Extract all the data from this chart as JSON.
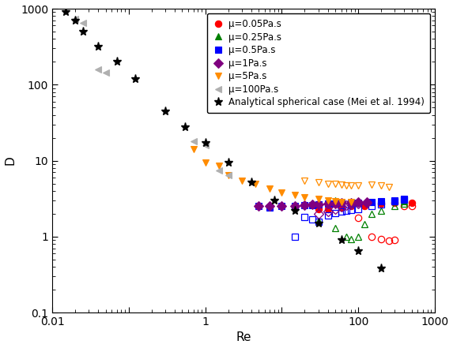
{
  "title": "",
  "xlabel": "Re",
  "ylabel": "D",
  "xlim": [
    0.01,
    1000
  ],
  "ylim": [
    0.1,
    1000
  ],
  "analytical": {
    "Re": [
      0.015,
      0.02,
      0.025,
      0.04,
      0.07,
      0.12,
      0.3,
      0.55,
      1.0,
      2.0,
      4.0,
      8.0,
      15,
      30,
      60,
      100,
      200
    ],
    "D": [
      900,
      700,
      500,
      320,
      200,
      120,
      45,
      28,
      17,
      9.5,
      5.2,
      3.0,
      2.2,
      1.5,
      0.9,
      0.65,
      0.38
    ],
    "color": "#000000",
    "marker": "*",
    "label": "Analytical spherical case (Mei et al. 1994)"
  },
  "series": [
    {
      "label": "μ=0.05Pa.s",
      "color": "#ff0000",
      "marker": "o",
      "filled": [
        {
          "Re": 30,
          "D": 2.3
        },
        {
          "Re": 40,
          "D": 2.3
        },
        {
          "Re": 60,
          "D": 2.4
        },
        {
          "Re": 80,
          "D": 2.5
        },
        {
          "Re": 120,
          "D": 2.5
        },
        {
          "Re": 200,
          "D": 2.7
        },
        {
          "Re": 300,
          "D": 2.8
        },
        {
          "Re": 500,
          "D": 2.8
        }
      ],
      "open": [
        {
          "Re": 100,
          "D": 1.75
        },
        {
          "Re": 150,
          "D": 1.0
        },
        {
          "Re": 200,
          "D": 0.92
        },
        {
          "Re": 250,
          "D": 0.88
        },
        {
          "Re": 300,
          "D": 0.9
        },
        {
          "Re": 400,
          "D": 2.5
        },
        {
          "Re": 500,
          "D": 2.55
        }
      ]
    },
    {
      "label": "μ=0.25Pa.s",
      "color": "#008000",
      "marker": "^",
      "filled": [
        {
          "Re": 50,
          "D": 3.0
        },
        {
          "Re": 80,
          "D": 2.8
        },
        {
          "Re": 100,
          "D": 2.8
        },
        {
          "Re": 150,
          "D": 2.85
        },
        {
          "Re": 200,
          "D": 2.9
        },
        {
          "Re": 300,
          "D": 2.9
        },
        {
          "Re": 400,
          "D": 2.95
        }
      ],
      "open": [
        {
          "Re": 30,
          "D": 1.6
        },
        {
          "Re": 50,
          "D": 1.3
        },
        {
          "Re": 70,
          "D": 1.0
        },
        {
          "Re": 80,
          "D": 0.92
        },
        {
          "Re": 100,
          "D": 1.0
        },
        {
          "Re": 120,
          "D": 1.45
        },
        {
          "Re": 150,
          "D": 2.0
        },
        {
          "Re": 200,
          "D": 2.2
        },
        {
          "Re": 300,
          "D": 2.5
        },
        {
          "Re": 400,
          "D": 2.7
        }
      ]
    },
    {
      "label": "μ=0.5Pa.s",
      "color": "#0000ff",
      "marker": "s",
      "filled": [
        {
          "Re": 5,
          "D": 2.5
        },
        {
          "Re": 7,
          "D": 2.4
        },
        {
          "Re": 10,
          "D": 2.5
        },
        {
          "Re": 15,
          "D": 2.55
        },
        {
          "Re": 20,
          "D": 2.6
        },
        {
          "Re": 25,
          "D": 2.6
        },
        {
          "Re": 30,
          "D": 2.65
        },
        {
          "Re": 40,
          "D": 2.7
        },
        {
          "Re": 50,
          "D": 2.75
        },
        {
          "Re": 60,
          "D": 2.8
        },
        {
          "Re": 80,
          "D": 2.8
        },
        {
          "Re": 100,
          "D": 2.8
        },
        {
          "Re": 150,
          "D": 2.85
        },
        {
          "Re": 200,
          "D": 2.9
        },
        {
          "Re": 300,
          "D": 3.0
        },
        {
          "Re": 400,
          "D": 3.1
        }
      ],
      "open": [
        {
          "Re": 15,
          "D": 1.0
        },
        {
          "Re": 20,
          "D": 1.8
        },
        {
          "Re": 25,
          "D": 1.7
        },
        {
          "Re": 30,
          "D": 1.55
        },
        {
          "Re": 40,
          "D": 1.9
        },
        {
          "Re": 50,
          "D": 2.05
        },
        {
          "Re": 60,
          "D": 2.15
        },
        {
          "Re": 70,
          "D": 2.2
        },
        {
          "Re": 80,
          "D": 2.25
        },
        {
          "Re": 100,
          "D": 2.3
        },
        {
          "Re": 150,
          "D": 2.5
        },
        {
          "Re": 200,
          "D": 2.65
        },
        {
          "Re": 300,
          "D": 2.9
        },
        {
          "Re": 400,
          "D": 3.05
        }
      ]
    },
    {
      "label": "μ=1Pa.s",
      "color": "#800080",
      "marker": "D",
      "filled": [
        {
          "Re": 5,
          "D": 2.55
        },
        {
          "Re": 7,
          "D": 2.5
        },
        {
          "Re": 10,
          "D": 2.5
        },
        {
          "Re": 15,
          "D": 2.55
        },
        {
          "Re": 20,
          "D": 2.6
        },
        {
          "Re": 25,
          "D": 2.65
        },
        {
          "Re": 30,
          "D": 2.65
        },
        {
          "Re": 40,
          "D": 2.7
        },
        {
          "Re": 50,
          "D": 2.75
        },
        {
          "Re": 60,
          "D": 2.8
        },
        {
          "Re": 80,
          "D": 2.8
        },
        {
          "Re": 100,
          "D": 2.85
        },
        {
          "Re": 130,
          "D": 2.85
        }
      ],
      "open": [
        {
          "Re": 30,
          "D": 2.0
        },
        {
          "Re": 40,
          "D": 2.15
        },
        {
          "Re": 50,
          "D": 2.3
        },
        {
          "Re": 60,
          "D": 2.45
        },
        {
          "Re": 70,
          "D": 2.6
        },
        {
          "Re": 80,
          "D": 2.65
        },
        {
          "Re": 100,
          "D": 2.7
        },
        {
          "Re": 130,
          "D": 2.8
        }
      ]
    },
    {
      "label": "μ=5Pa.s",
      "color": "#ff8c00",
      "marker": "v",
      "filled": [
        {
          "Re": 0.7,
          "D": 14.0
        },
        {
          "Re": 1.0,
          "D": 9.5
        },
        {
          "Re": 1.5,
          "D": 8.5
        },
        {
          "Re": 2.0,
          "D": 6.5
        },
        {
          "Re": 3.0,
          "D": 5.5
        },
        {
          "Re": 4.5,
          "D": 4.9
        },
        {
          "Re": 7.0,
          "D": 4.3
        },
        {
          "Re": 10,
          "D": 3.8
        },
        {
          "Re": 15,
          "D": 3.5
        },
        {
          "Re": 20,
          "D": 3.3
        },
        {
          "Re": 30,
          "D": 3.1
        },
        {
          "Re": 40,
          "D": 3.0
        },
        {
          "Re": 50,
          "D": 2.9
        },
        {
          "Re": 60,
          "D": 2.85
        },
        {
          "Re": 80,
          "D": 2.85
        }
      ],
      "open": [
        {
          "Re": 20,
          "D": 5.5
        },
        {
          "Re": 30,
          "D": 5.2
        },
        {
          "Re": 40,
          "D": 5.0
        },
        {
          "Re": 50,
          "D": 4.9
        },
        {
          "Re": 60,
          "D": 4.8
        },
        {
          "Re": 70,
          "D": 4.7
        },
        {
          "Re": 80,
          "D": 4.7
        },
        {
          "Re": 100,
          "D": 4.7
        },
        {
          "Re": 150,
          "D": 4.8
        },
        {
          "Re": 200,
          "D": 4.7
        },
        {
          "Re": 250,
          "D": 4.5
        }
      ]
    },
    {
      "label": "μ=100Pa.s",
      "color": "#b0b0b0",
      "marker": "<",
      "filled": [
        {
          "Re": 0.02,
          "D": 740
        },
        {
          "Re": 0.025,
          "D": 650
        },
        {
          "Re": 0.04,
          "D": 160
        },
        {
          "Re": 0.05,
          "D": 145
        },
        {
          "Re": 0.7,
          "D": 18
        },
        {
          "Re": 1.0,
          "D": 16
        },
        {
          "Re": 1.5,
          "D": 7.5
        },
        {
          "Re": 2.0,
          "D": 6.5
        }
      ],
      "open": []
    }
  ],
  "legend_fontsize": 8.5,
  "axis_fontsize": 11,
  "marker_size": 6
}
